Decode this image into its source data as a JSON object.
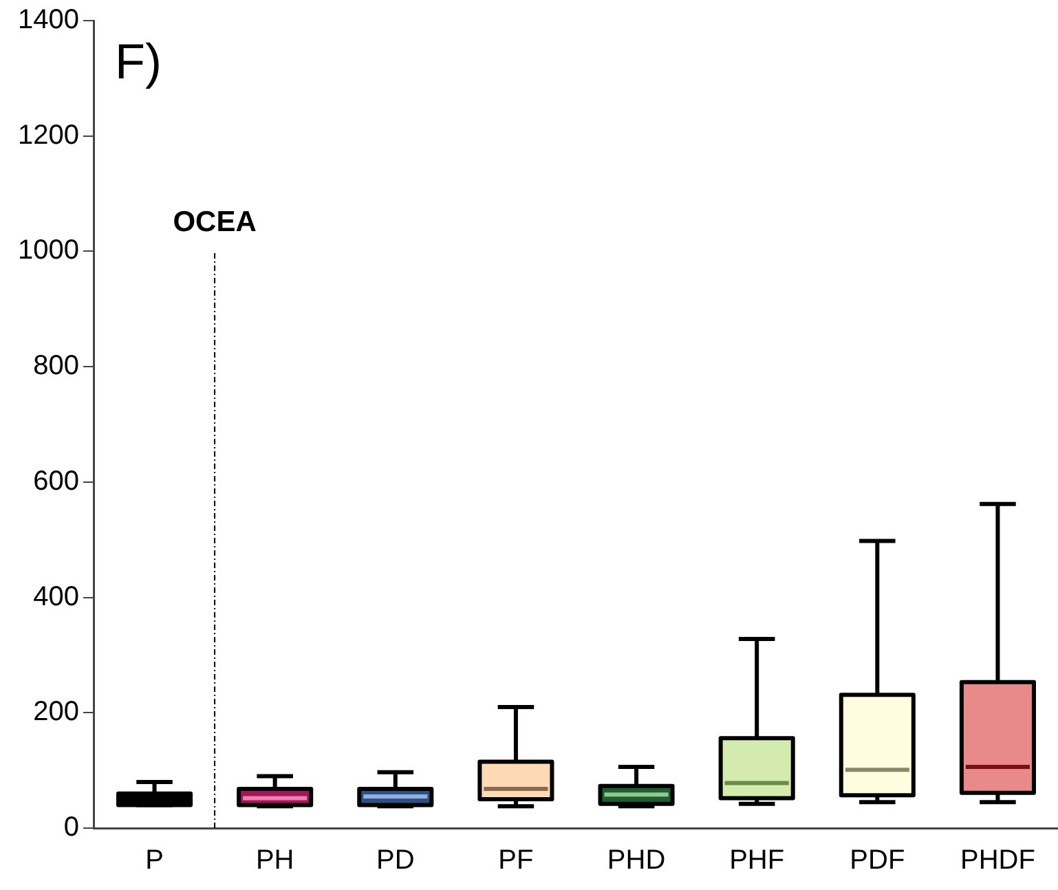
{
  "chart_data": {
    "type": "box",
    "title": "F)",
    "categories": [
      "P",
      "PH",
      "PD",
      "PF",
      "PHD",
      "PHF",
      "PDF",
      "PHDF"
    ],
    "colors": [
      "#000000",
      "#a0185a",
      "#2f4f7f",
      "#fdd9b5",
      "#1f5f2f",
      "#d4ebb0",
      "#fefde0",
      "#e88a8a"
    ],
    "boxes": [
      {
        "low": 40,
        "q1": 40,
        "median": 50,
        "q3": 60,
        "high": 80
      },
      {
        "low": 38,
        "q1": 40,
        "median": 52,
        "q3": 68,
        "high": 90
      },
      {
        "low": 38,
        "q1": 40,
        "median": 55,
        "q3": 68,
        "high": 97
      },
      {
        "low": 38,
        "q1": 50,
        "median": 68,
        "q3": 115,
        "high": 210
      },
      {
        "low": 38,
        "q1": 42,
        "median": 58,
        "q3": 73,
        "high": 106
      },
      {
        "low": 42,
        "q1": 52,
        "median": 78,
        "q3": 156,
        "high": 328
      },
      {
        "low": 45,
        "q1": 57,
        "median": 101,
        "q3": 231,
        "high": 498
      },
      {
        "low": 45,
        "q1": 61,
        "median": 106,
        "q3": 253,
        "high": 562
      }
    ],
    "ylim": [
      0,
      1400
    ],
    "yticks": [
      0,
      200,
      400,
      600,
      800,
      1000,
      1200,
      1400
    ],
    "annotations": [
      "OCEA"
    ],
    "grid": false,
    "legend": false
  }
}
